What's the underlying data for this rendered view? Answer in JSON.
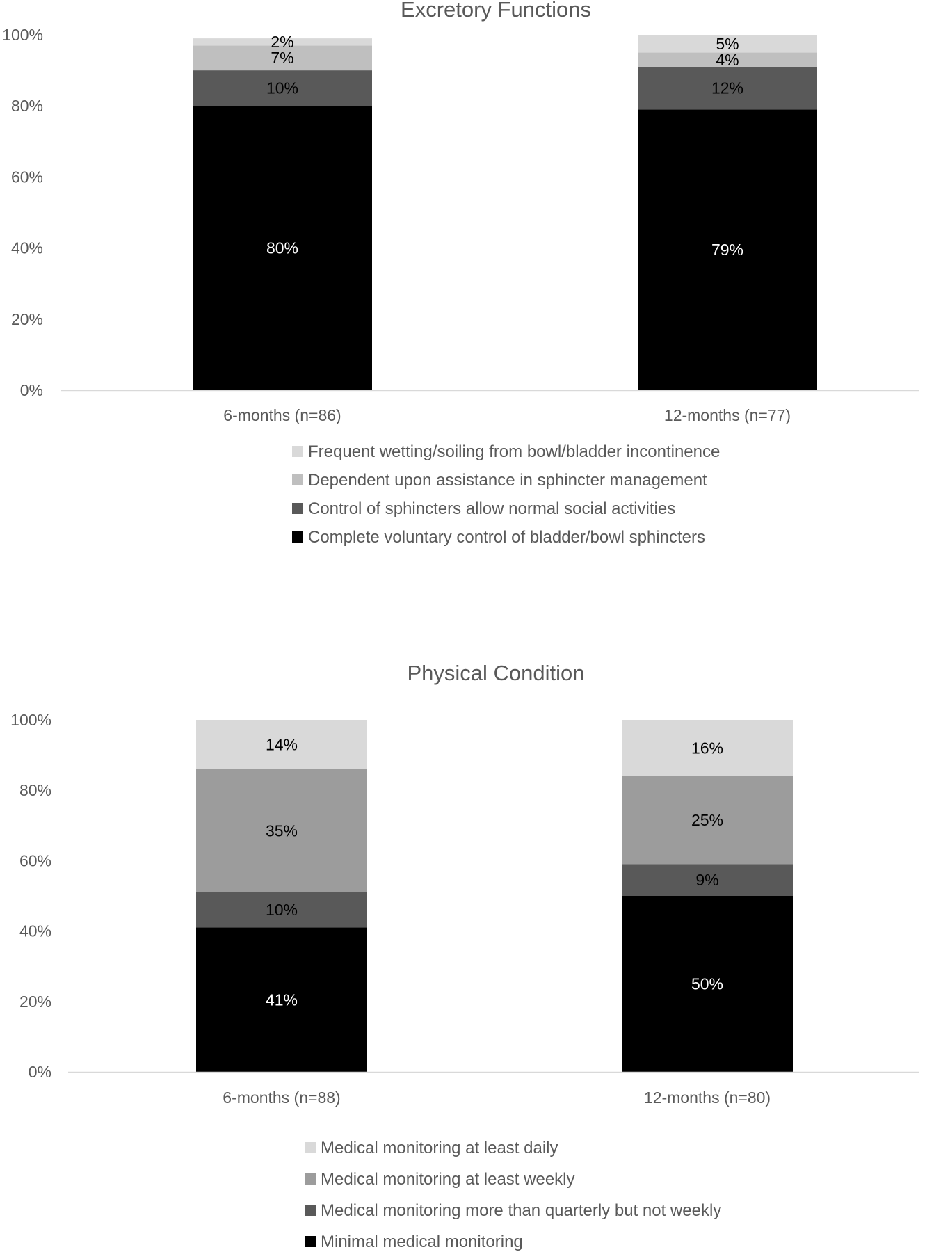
{
  "chart_data": [
    {
      "type": "bar",
      "stacked": true,
      "title": "Excretory Functions",
      "categories": [
        "6-months (n=86)",
        "12-months (n=77)"
      ],
      "ylim": [
        0,
        100
      ],
      "yticks": [
        "0%",
        "20%",
        "40%",
        "60%",
        "80%",
        "100%"
      ],
      "grid": false,
      "legend_position": "bottom",
      "series": [
        {
          "name": "Complete voluntary control of bladder/bowl sphincters",
          "values": [
            80,
            79
          ],
          "labels": [
            "80%",
            "79%"
          ],
          "color": "#000000",
          "label_color": "#ffffff"
        },
        {
          "name": "Control of sphincters allow normal social activities",
          "values": [
            10,
            12
          ],
          "labels": [
            "10%",
            "12%"
          ],
          "color": "#595959",
          "label_color": "#000000"
        },
        {
          "name": "Dependent upon assistance in sphincter management",
          "values": [
            7,
            4
          ],
          "labels": [
            "7%",
            "4%"
          ],
          "color": "#bfbfbf",
          "label_color": "#000000"
        },
        {
          "name": "Frequent wetting/soiling from bowl/bladder incontinence",
          "values": [
            2,
            5
          ],
          "labels": [
            "2%",
            "5%"
          ],
          "color": "#d9d9d9",
          "label_color": "#000000"
        }
      ]
    },
    {
      "type": "bar",
      "stacked": true,
      "title": "Physical Condition",
      "categories": [
        "6-months (n=88)",
        "12-months (n=80)"
      ],
      "ylim": [
        0,
        100
      ],
      "yticks": [
        "0%",
        "20%",
        "40%",
        "60%",
        "80%",
        "100%"
      ],
      "grid": false,
      "legend_position": "bottom",
      "series": [
        {
          "name": "Minimal medical monitoring",
          "values": [
            41,
            50
          ],
          "labels": [
            "41%",
            "50%"
          ],
          "color": "#000000",
          "label_color": "#ffffff"
        },
        {
          "name": "Medical monitoring more than quarterly but not weekly",
          "values": [
            10,
            9
          ],
          "labels": [
            "10%",
            "9%"
          ],
          "color": "#595959",
          "label_color": "#000000"
        },
        {
          "name": "Medical monitoring at least weekly",
          "values": [
            35,
            25
          ],
          "labels": [
            "35%",
            "25%"
          ],
          "color": "#9c9c9c",
          "label_color": "#000000"
        },
        {
          "name": "Medical monitoring at least daily",
          "values": [
            14,
            16
          ],
          "labels": [
            "14%",
            "16%"
          ],
          "color": "#d9d9d9",
          "label_color": "#000000"
        }
      ]
    }
  ]
}
